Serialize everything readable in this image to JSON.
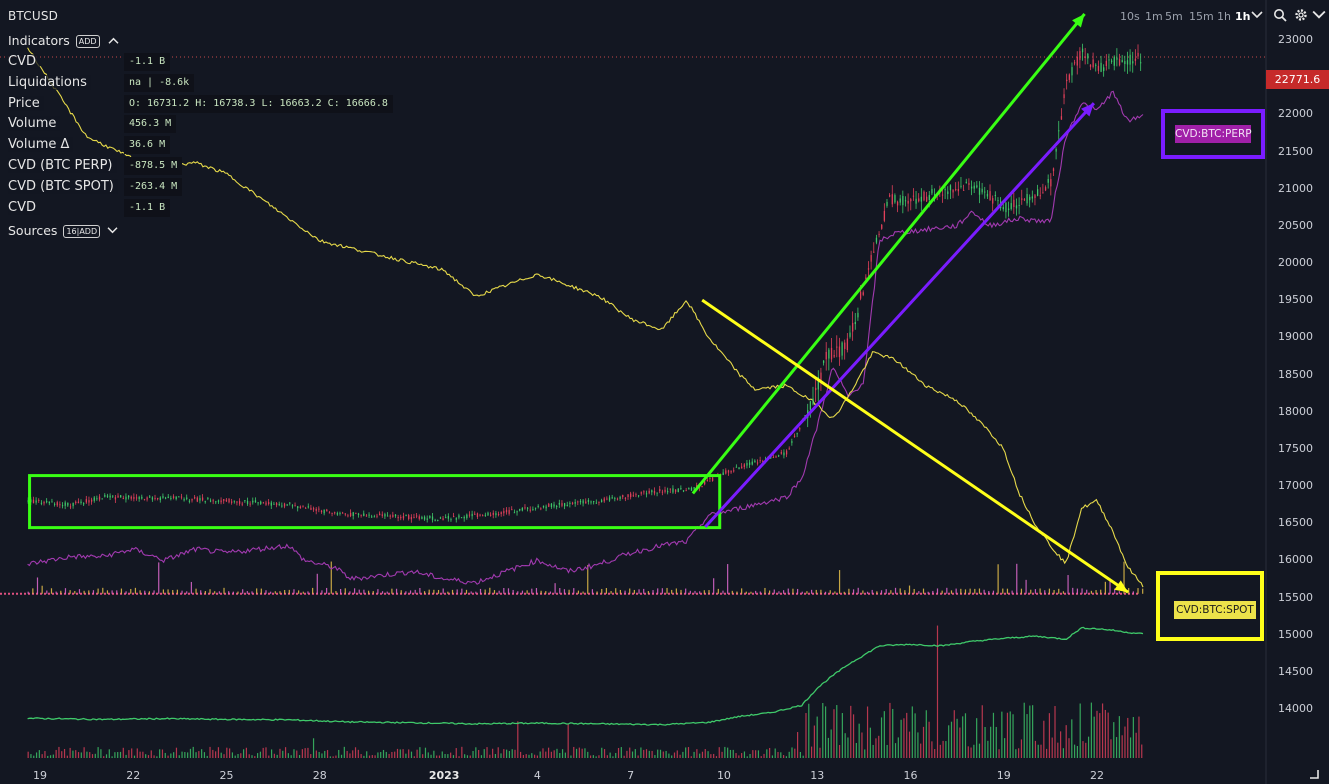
{
  "symbol": "BTCUSD",
  "timeframes": [
    {
      "label": "10s",
      "active": false
    },
    {
      "label": "1m",
      "active": false
    },
    {
      "label": "5m",
      "active": false
    },
    {
      "label": "15m",
      "active": false
    },
    {
      "label": "1h",
      "active": false
    },
    {
      "label": "1h",
      "active": true
    }
  ],
  "indicators": {
    "title": "Indicators",
    "badge": "ADD",
    "rows": [
      {
        "name": "CVD",
        "value": "-1.1 B"
      },
      {
        "name": "Liquidations",
        "value": "na | -8.6k"
      },
      {
        "name": "Price",
        "value": "O: 16731.2 H: 16738.3 L: 16663.2 C: 16666.8"
      },
      {
        "name": "Volume",
        "value": "456.3 M"
      },
      {
        "name": "Volume Δ",
        "value": "36.6 M"
      },
      {
        "name": "CVD (BTC PERP)",
        "value": "-878.5 M"
      },
      {
        "name": "CVD (BTC SPOT)",
        "value": "-263.4 M"
      },
      {
        "name": "CVD",
        "value": "-1.1 B"
      }
    ]
  },
  "sources": {
    "title": "Sources",
    "count": "16",
    "badge": "ADD"
  },
  "price_tag": "22771.6",
  "labels": {
    "perp": "CVD:BTC:PERP",
    "spot": "CVD:BTC:SPOT"
  },
  "colors": {
    "background": "#131722",
    "spot_cvd": "#e6d94a",
    "perp_cvd": "#a23ab0",
    "vol_line": "#3fc96a",
    "candle_up": "#3fc96a",
    "candle_down": "#e0405a",
    "green_annot": "#39ff14",
    "purple_annot": "#7a1cff",
    "yellow_annot": "#ffff1a",
    "price_tag": "#c62a2a"
  },
  "chart_data": {
    "type": "line",
    "y_axis": {
      "min": 13750,
      "max": 23500,
      "ticks": [
        23000,
        22500,
        22000,
        21500,
        21000,
        20500,
        20000,
        19500,
        19000,
        18500,
        18000,
        17500,
        17000,
        16500,
        16000,
        15500,
        15000,
        14500,
        14000
      ]
    },
    "x_axis": {
      "ticks": [
        {
          "label": "19",
          "day": 0
        },
        {
          "label": "22",
          "day": 3
        },
        {
          "label": "25",
          "day": 6
        },
        {
          "label": "28",
          "day": 9
        },
        {
          "label": "2023",
          "day": 13,
          "bold": true
        },
        {
          "label": "4",
          "day": 16
        },
        {
          "label": "7",
          "day": 19
        },
        {
          "label": "10",
          "day": 22
        },
        {
          "label": "13",
          "day": 25
        },
        {
          "label": "16",
          "day": 28
        },
        {
          "label": "19",
          "day": 31
        },
        {
          "label": "22",
          "day": 34
        }
      ],
      "range_days": [
        -0.4,
        35.5
      ]
    },
    "series": [
      {
        "key": "price",
        "points": [
          [
            -0.4,
            16800
          ],
          [
            1,
            16750
          ],
          [
            2,
            16850
          ],
          [
            4,
            16840
          ],
          [
            6,
            16800
          ],
          [
            8,
            16750
          ],
          [
            9.5,
            16630
          ],
          [
            11,
            16600
          ],
          [
            13,
            16560
          ],
          [
            15,
            16650
          ],
          [
            16.5,
            16740
          ],
          [
            18,
            16800
          ],
          [
            19.5,
            16920
          ],
          [
            21,
            16960
          ],
          [
            22,
            17180
          ],
          [
            23,
            17320
          ],
          [
            24,
            17450
          ],
          [
            24.8,
            18100
          ],
          [
            25.3,
            18750
          ],
          [
            26,
            18900
          ],
          [
            26.8,
            20200
          ],
          [
            27.3,
            20850
          ],
          [
            28,
            20850
          ],
          [
            29,
            20950
          ],
          [
            30,
            21050
          ],
          [
            30.5,
            20900
          ],
          [
            31,
            20750
          ],
          [
            32,
            20900
          ],
          [
            32.5,
            21100
          ],
          [
            33,
            22400
          ],
          [
            33.5,
            22850
          ],
          [
            34,
            22600
          ],
          [
            34.5,
            22700
          ],
          [
            35.3,
            22771
          ]
        ]
      },
      {
        "key": "spot_cvd",
        "points": [
          [
            -0.4,
            22900
          ],
          [
            1.5,
            21700
          ],
          [
            3,
            21400
          ],
          [
            4,
            21300
          ],
          [
            5,
            21350
          ],
          [
            6,
            21200
          ],
          [
            7.5,
            20750
          ],
          [
            9,
            20300
          ],
          [
            10,
            20200
          ],
          [
            11,
            20100
          ],
          [
            12,
            20000
          ],
          [
            13,
            19900
          ],
          [
            14,
            19550
          ],
          [
            15,
            19700
          ],
          [
            16,
            19850
          ],
          [
            17,
            19700
          ],
          [
            18,
            19550
          ],
          [
            19,
            19250
          ],
          [
            20,
            19100
          ],
          [
            20.8,
            19500
          ],
          [
            21.5,
            19000
          ],
          [
            22.5,
            18500
          ],
          [
            23,
            18300
          ],
          [
            24,
            18350
          ],
          [
            25,
            18100
          ],
          [
            25.5,
            17900
          ],
          [
            26,
            18200
          ],
          [
            26.8,
            18800
          ],
          [
            27.5,
            18700
          ],
          [
            28.5,
            18350
          ],
          [
            29.5,
            18150
          ],
          [
            30.5,
            17750
          ],
          [
            31,
            17500
          ],
          [
            31.5,
            16900
          ],
          [
            32,
            16500
          ],
          [
            32.5,
            16200
          ],
          [
            33,
            15950
          ],
          [
            33.5,
            16700
          ],
          [
            34,
            16800
          ],
          [
            34.5,
            16400
          ],
          [
            35,
            15900
          ],
          [
            35.5,
            15650
          ]
        ]
      },
      {
        "key": "perp_cvd",
        "points": [
          [
            -0.4,
            15950
          ],
          [
            1,
            16050
          ],
          [
            2,
            16050
          ],
          [
            3,
            16150
          ],
          [
            4,
            16000
          ],
          [
            5,
            16150
          ],
          [
            6,
            16100
          ],
          [
            7,
            16150
          ],
          [
            8,
            16200
          ],
          [
            8.5,
            16000
          ],
          [
            9.5,
            15900
          ],
          [
            10,
            15750
          ],
          [
            11,
            15800
          ],
          [
            12,
            15850
          ],
          [
            13,
            15750
          ],
          [
            14,
            15700
          ],
          [
            15,
            15850
          ],
          [
            16,
            16000
          ],
          [
            17,
            15850
          ],
          [
            18,
            15950
          ],
          [
            19,
            16100
          ],
          [
            20,
            16200
          ],
          [
            20.8,
            16250
          ],
          [
            21.5,
            16600
          ],
          [
            22.5,
            16700
          ],
          [
            23,
            16750
          ],
          [
            24,
            16850
          ],
          [
            24.5,
            17100
          ],
          [
            25,
            17800
          ],
          [
            25.5,
            18600
          ],
          [
            26,
            18200
          ],
          [
            26.5,
            18400
          ],
          [
            27,
            20300
          ],
          [
            27.5,
            20400
          ],
          [
            28.5,
            20450
          ],
          [
            29.5,
            20500
          ],
          [
            30,
            20700
          ],
          [
            30.5,
            20500
          ],
          [
            31.5,
            20600
          ],
          [
            32.5,
            20550
          ],
          [
            33,
            21700
          ],
          [
            33.5,
            22150
          ],
          [
            34,
            22050
          ],
          [
            34.5,
            22300
          ],
          [
            35,
            21900
          ],
          [
            35.5,
            22000
          ]
        ]
      },
      {
        "key": "vol_line",
        "points": [
          [
            -0.4,
            13875
          ],
          [
            2,
            13860
          ],
          [
            4,
            13870
          ],
          [
            6,
            13860
          ],
          [
            8,
            13855
          ],
          [
            10,
            13825
          ],
          [
            12,
            13815
          ],
          [
            14,
            13800
          ],
          [
            16,
            13810
          ],
          [
            18,
            13800
          ],
          [
            20,
            13790
          ],
          [
            21.5,
            13820
          ],
          [
            22.5,
            13900
          ],
          [
            23.5,
            13950
          ],
          [
            24.5,
            14050
          ],
          [
            25,
            14280
          ],
          [
            25.5,
            14450
          ],
          [
            26,
            14600
          ],
          [
            27,
            14850
          ],
          [
            28,
            14870
          ],
          [
            29,
            14850
          ],
          [
            30,
            14910
          ],
          [
            31,
            14950
          ],
          [
            32,
            14980
          ],
          [
            33,
            14940
          ],
          [
            33.5,
            15090
          ],
          [
            34,
            15080
          ],
          [
            34.5,
            15060
          ],
          [
            35,
            15030
          ],
          [
            35.5,
            15010
          ]
        ]
      }
    ],
    "annotations": [
      {
        "type": "box",
        "color": "green",
        "x0": -0.4,
        "x1": 21.8,
        "y0": 16440,
        "y1": 17140
      },
      {
        "type": "arrow",
        "color": "green",
        "from": [
          21,
          16900
        ],
        "to": [
          33.6,
          23350
        ]
      },
      {
        "type": "arrow",
        "color": "purple",
        "from": [
          21.4,
          16450
        ],
        "to": [
          33.9,
          22150
        ]
      },
      {
        "type": "arrow",
        "color": "yellow",
        "from": [
          21.3,
          19500
        ],
        "to": [
          35.0,
          15570
        ]
      }
    ]
  }
}
